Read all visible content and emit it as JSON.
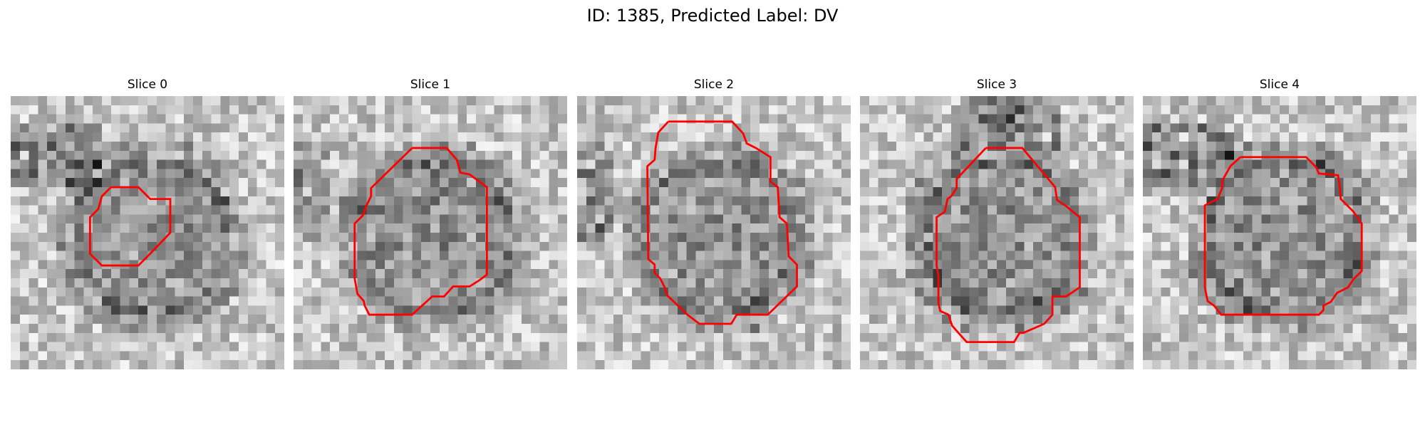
{
  "figure": {
    "title": "ID: 1385, Predicted Label: DV"
  },
  "outline_color": "#ff0000",
  "panels": [
    {
      "title": "Slice 0",
      "seed": 11,
      "dark_band": "upper-left"
    },
    {
      "title": "Slice 1",
      "seed": 23,
      "dark_band": "left"
    },
    {
      "title": "Slice 2",
      "seed": 37,
      "dark_band": "left"
    },
    {
      "title": "Slice 3",
      "seed": 51,
      "dark_band": "top"
    },
    {
      "title": "Slice 4",
      "seed": 67,
      "dark_band": "upper-left"
    }
  ]
}
